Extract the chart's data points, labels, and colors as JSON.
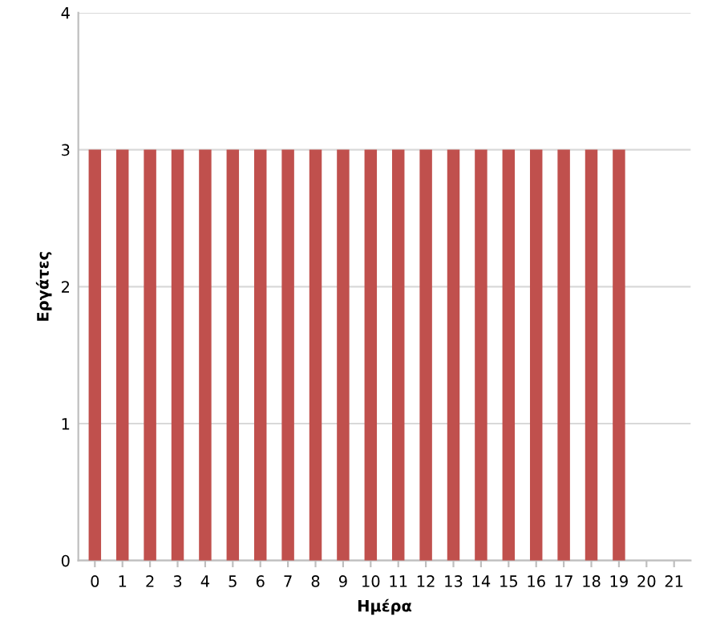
{
  "chart_data": {
    "type": "bar",
    "xlabel": "Ημέρα",
    "ylabel": "Εργάτες",
    "categories": [
      "0",
      "1",
      "2",
      "3",
      "4",
      "5",
      "6",
      "7",
      "8",
      "9",
      "10",
      "11",
      "12",
      "13",
      "14",
      "15",
      "16",
      "17",
      "18",
      "19",
      "20",
      "21"
    ],
    "values": [
      3,
      3,
      3,
      3,
      3,
      3,
      3,
      3,
      3,
      3,
      3,
      3,
      3,
      3,
      3,
      3,
      3,
      3,
      3,
      3,
      0,
      0
    ],
    "color": "#c0504d",
    "ylim": [
      0,
      4
    ],
    "yticks": [
      0,
      1,
      2,
      3,
      4
    ],
    "grid": "y",
    "legend": false
  }
}
